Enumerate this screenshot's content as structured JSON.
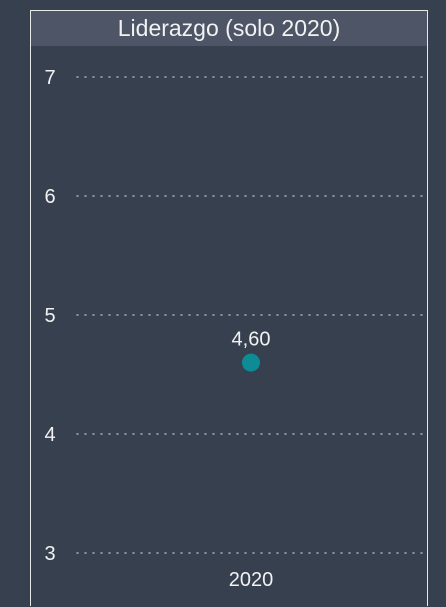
{
  "chart_data": {
    "type": "scatter",
    "title": "Liderazgo (solo 2020)",
    "xlabel": "",
    "ylabel": "",
    "categories": [
      "2020"
    ],
    "series": [
      {
        "values": [
          4.6
        ],
        "labels": [
          "4,60"
        ]
      }
    ],
    "ylim": [
      3,
      7
    ],
    "yticks": [
      "3",
      "4",
      "5",
      "6",
      "7"
    ],
    "grid": true,
    "legend": "none"
  },
  "colors": {
    "background": "#36404f",
    "header": "#4d5566",
    "point": "#0e8c96",
    "text": "#f2f2f2",
    "grid": "#c9cdd3"
  }
}
